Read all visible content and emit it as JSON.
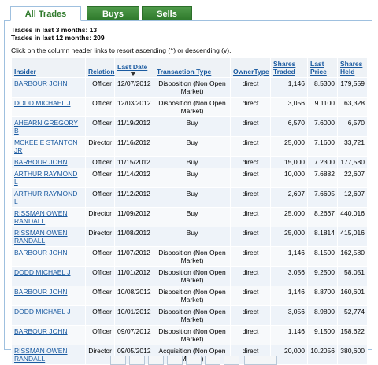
{
  "tabs": [
    "All Trades",
    "Buys",
    "Sells"
  ],
  "summary": [
    "Trades in last 3 months: 13",
    "Trades in last 12 months: 209"
  ],
  "instruction": "Click on the column header links to resort ascending (^) or descending (v).",
  "table": {
    "headers": [
      "Insider",
      "Relation",
      "Last Date",
      "Transaction Type",
      "OwnerType",
      "Shares Traded",
      "Last Price",
      "Shares Held"
    ],
    "rows": [
      [
        "BARBOUR JOHN",
        "Officer",
        "12/07/2012",
        "Disposition (Non Open Market)",
        "direct",
        "1,146",
        "8.5300",
        "179,559"
      ],
      [
        "DODD MICHAEL J",
        "Officer",
        "12/03/2012",
        "Disposition (Non Open Market)",
        "direct",
        "3,056",
        "9.1100",
        "63,328"
      ],
      [
        "AHEARN GREGORY B",
        "Officer",
        "11/19/2012",
        "Buy",
        "direct",
        "6,570",
        "7.6000",
        "6,570"
      ],
      [
        "MCKEE E STANTON JR",
        "Director",
        "11/16/2012",
        "Buy",
        "direct",
        "25,000",
        "7.1600",
        "33,721"
      ],
      [
        "BARBOUR JOHN",
        "Officer",
        "11/15/2012",
        "Buy",
        "direct",
        "15,000",
        "7.2300",
        "177,580"
      ],
      [
        "ARTHUR RAYMOND L",
        "Officer",
        "11/14/2012",
        "Buy",
        "direct",
        "10,000",
        "7.6882",
        "22,607"
      ],
      [
        "ARTHUR RAYMOND L",
        "Officer",
        "11/12/2012",
        "Buy",
        "direct",
        "2,607",
        "7.6605",
        "12,607"
      ],
      [
        "RISSMAN OWEN RANDALL",
        "Director",
        "11/09/2012",
        "Buy",
        "direct",
        "25,000",
        "8.2667",
        "440,016"
      ],
      [
        "RISSMAN OWEN RANDALL",
        "Director",
        "11/08/2012",
        "Buy",
        "direct",
        "25,000",
        "8.1814",
        "415,016"
      ],
      [
        "BARBOUR JOHN",
        "Officer",
        "11/07/2012",
        "Disposition (Non Open Market)",
        "direct",
        "1,146",
        "8.1500",
        "162,580"
      ],
      [
        "DODD MICHAEL J",
        "Officer",
        "11/01/2012",
        "Disposition (Non Open Market)",
        "direct",
        "3,056",
        "9.2500",
        "58,051"
      ],
      [
        "BARBOUR JOHN",
        "Officer",
        "10/08/2012",
        "Disposition (Non Open Market)",
        "direct",
        "1,146",
        "8.8700",
        "160,601"
      ],
      [
        "DODD MICHAEL J",
        "Officer",
        "10/01/2012",
        "Disposition (Non Open Market)",
        "direct",
        "3,056",
        "8.9800",
        "52,774"
      ],
      [
        "BARBOUR JOHN",
        "Officer",
        "09/07/2012",
        "Disposition (Non Open Market)",
        "direct",
        "1,146",
        "9.1500",
        "158,622"
      ],
      [
        "RISSMAN OWEN RANDALL",
        "Director",
        "09/05/2012",
        "Acquisition (Non Open Market)",
        "direct",
        "20,000",
        "10.2056",
        "380,600"
      ]
    ]
  }
}
